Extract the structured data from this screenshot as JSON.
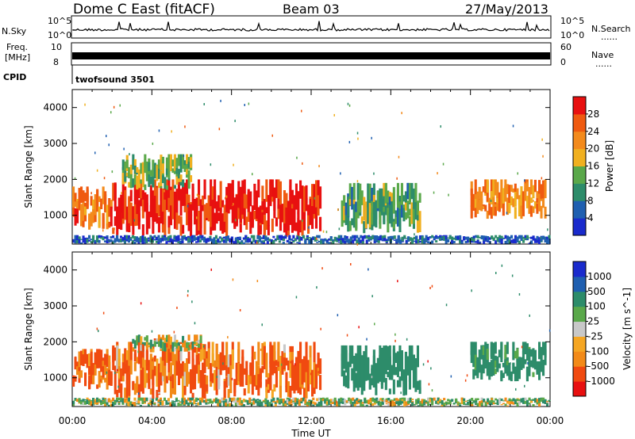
{
  "header": {
    "station": "Dome C East (fitACF)",
    "beam": "Beam 03",
    "date": "27/May/2013"
  },
  "strips": {
    "nsky_label": "N.Sky",
    "nsky_ticks": [
      "10^5",
      "10^0"
    ],
    "nsearch_label": "N.Search",
    "nsearch_ticks": [
      "10^5",
      "10^0"
    ],
    "freq_label": "Freq.",
    "freq_unit": "[MHz]",
    "freq_ticks": [
      "10",
      "8"
    ],
    "nave_label": "Nave",
    "nave_ticks": [
      "60",
      "0"
    ],
    "cpid_label": "CPID",
    "cpid_value": "twofsound 3501",
    "dots": "......"
  },
  "colors": {
    "power_scale": [
      "#1a2bcc",
      "#1f5fb0",
      "#2d8c6a",
      "#5aa84a",
      "#f0b020",
      "#f38a1c",
      "#ef5a10",
      "#e81010"
    ],
    "velocity_scale": [
      "#e81010",
      "#f04a10",
      "#f28a18",
      "#f5a623",
      "#c8c8c8",
      "#5aa84a",
      "#2d8c6a",
      "#1f5fb0",
      "#1a2bcc"
    ],
    "ground_scatter": "#808080",
    "frame": "#000000"
  },
  "chart_data": [
    {
      "type": "heatmap",
      "name": "power-panel",
      "xlabel": "",
      "ylabel": "Slant Range [km]",
      "xlim": [
        "00:00",
        "24:00"
      ],
      "ylim": [
        200,
        4500
      ],
      "y_ticks": [
        1000,
        2000,
        3000,
        4000
      ],
      "colorbar_label": "Power [dB]",
      "colorbar_ticks": [
        4,
        8,
        12,
        16,
        20,
        24,
        28
      ],
      "colorbar_range": [
        0,
        32
      ],
      "echo_regions": [
        {
          "t_start": 0.0,
          "t_end": 2.0,
          "range_low": 600,
          "range_high": 1800,
          "level": 24
        },
        {
          "t_start": 2.0,
          "t_end": 12.5,
          "range_low": 400,
          "range_high": 2000,
          "level": 30
        },
        {
          "t_start": 2.5,
          "t_end": 6.0,
          "range_low": 1700,
          "range_high": 2700,
          "level": 14
        },
        {
          "t_start": 13.5,
          "t_end": 17.5,
          "range_low": 500,
          "range_high": 1900,
          "level": 12
        },
        {
          "t_start": 20.0,
          "t_end": 23.8,
          "range_low": 900,
          "range_high": 2000,
          "level": 22
        },
        {
          "t_start": 0.0,
          "t_end": 24.0,
          "range_low": 200,
          "range_high": 450,
          "level": 6
        }
      ]
    },
    {
      "type": "heatmap",
      "name": "velocity-panel",
      "xlabel": "Time UT",
      "ylabel": "Slant Range [km]",
      "xlim": [
        "00:00",
        "24:00"
      ],
      "ylim": [
        200,
        4500
      ],
      "x_ticks": [
        "00:00",
        "04:00",
        "08:00",
        "12:00",
        "16:00",
        "20:00",
        "00:00"
      ],
      "y_ticks": [
        1000,
        2000,
        3000,
        4000
      ],
      "colorbar_label": "Velocity [m s^-1]",
      "colorbar_ticks": [
        1000,
        500,
        100,
        25,
        -25,
        -100,
        -500,
        -1000
      ],
      "echo_regions": [
        {
          "t_start": 0.0,
          "t_end": 2.0,
          "range_low": 600,
          "range_high": 1800,
          "velocity": -150
        },
        {
          "t_start": 2.0,
          "t_end": 12.5,
          "range_low": 400,
          "range_high": 2000,
          "velocity": -120
        },
        {
          "t_start": 3.0,
          "t_end": 6.5,
          "range_low": 1700,
          "range_high": 2200,
          "velocity": 0
        },
        {
          "t_start": 13.5,
          "t_end": 17.5,
          "range_low": 500,
          "range_high": 1900,
          "velocity": 300
        },
        {
          "t_start": 20.0,
          "t_end": 23.8,
          "range_low": 900,
          "range_high": 2000,
          "velocity": 200
        },
        {
          "t_start": 0.0,
          "t_end": 24.0,
          "range_low": 200,
          "range_high": 450,
          "velocity": 60
        }
      ]
    }
  ]
}
